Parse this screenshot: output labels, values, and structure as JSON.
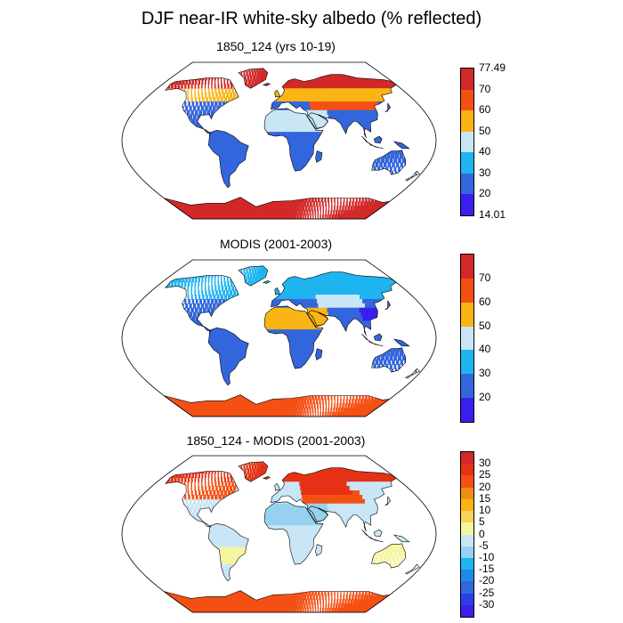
{
  "title": "DJF near-IR white-sky albedo (% reflected)",
  "colors": {
    "ocean": "#ffffff",
    "outline": "#000000",
    "abs_scale": [
      "#3a1ef0",
      "#3366dd",
      "#1eb4f0",
      "#c8e6f5",
      "#fab414",
      "#f55014",
      "#d22828"
    ],
    "diff_scale": [
      "#3a1ef0",
      "#2b3ee8",
      "#3366dd",
      "#1e8ce6",
      "#1eb4f0",
      "#96d2f0",
      "#c8e6f5",
      "#f5f5a0",
      "#fad25a",
      "#fab414",
      "#f58c14",
      "#f55014",
      "#e63214",
      "#d22828"
    ]
  },
  "panels": [
    {
      "title": "1850_124 (yrs 10-19)",
      "kind": "abs",
      "labels": [
        "77.49",
        "70",
        "60",
        "50",
        "40",
        "30",
        "20",
        "14.01"
      ],
      "with_endpoints": true
    },
    {
      "title": "MODIS (2001-2003)",
      "kind": "abs",
      "labels": [
        "70",
        "60",
        "50",
        "40",
        "30",
        "20"
      ],
      "with_endpoints": false
    },
    {
      "title": "1850_124 - MODIS (2001-2003)",
      "kind": "diff",
      "labels": [
        "30",
        "25",
        "20",
        "15",
        "10",
        "5",
        "0",
        "-5",
        "-10",
        "-15",
        "-20",
        "-25",
        "-30"
      ],
      "with_endpoints": false
    }
  ]
}
